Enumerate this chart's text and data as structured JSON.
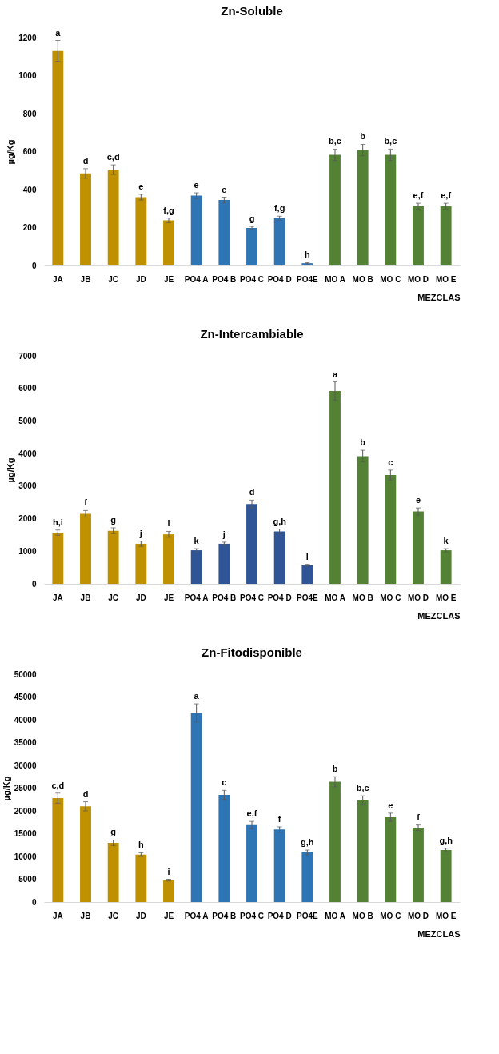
{
  "chart_data": [
    {
      "type": "bar",
      "title": "Zn-Soluble",
      "xlabel": "MEZCLAS",
      "ylabel": "µg/Kg",
      "categories": [
        "JA",
        "JB",
        "JC",
        "JD",
        "JE",
        "PO4 A",
        "PO4 B",
        "PO4 C",
        "PO4 D",
        "PO4E",
        "MO A",
        "MO B",
        "MO C",
        "MO D",
        "MO E"
      ],
      "values": [
        1130,
        485,
        505,
        360,
        238,
        368,
        345,
        198,
        250,
        12,
        583,
        608,
        583,
        313,
        313
      ],
      "errors": [
        55,
        25,
        25,
        15,
        12,
        15,
        15,
        8,
        10,
        3,
        30,
        30,
        30,
        15,
        15
      ],
      "colors": [
        "#bf9000",
        "#bf9000",
        "#bf9000",
        "#bf9000",
        "#bf9000",
        "#2e75b6",
        "#2e75b6",
        "#2e75b6",
        "#2e75b6",
        "#2e75b6",
        "#548235",
        "#548235",
        "#548235",
        "#548235",
        "#548235"
      ],
      "ylim": [
        0,
        1200
      ],
      "yticks": [
        0,
        200,
        400,
        600,
        800,
        1000,
        1200
      ],
      "annotations": [
        {
          "text": "a",
          "x": "JA",
          "y": 1185
        },
        {
          "text": "d",
          "x": "JB",
          "y": 510
        },
        {
          "text": "c,d",
          "x": "JC",
          "y": 530
        },
        {
          "text": "e",
          "x": "JD",
          "y": 375
        },
        {
          "text": "f,g",
          "x": "JE",
          "y": 250
        },
        {
          "text": "e",
          "x": "PO4 A",
          "y": 383
        },
        {
          "text": "e",
          "x": "PO4 B",
          "y": 360
        },
        {
          "text": "g",
          "x": "PO4 C",
          "y": 206
        },
        {
          "text": "f,g",
          "x": "PO4 D",
          "y": 260
        },
        {
          "text": "h",
          "x": "PO4E",
          "y": 15
        },
        {
          "text": "b,c",
          "x": "MO A",
          "y": 613
        },
        {
          "text": "b",
          "x": "MO B",
          "y": 638
        },
        {
          "text": "b,c",
          "x": "MO C",
          "y": 613
        },
        {
          "text": "e,f",
          "x": "MO D",
          "y": 328
        },
        {
          "text": "e,f",
          "x": "MO E",
          "y": 328
        }
      ]
    },
    {
      "type": "bar",
      "title": "Zn-Intercambiable",
      "xlabel": "MEZCLAS",
      "ylabel": "µg/Kg",
      "categories": [
        "JA",
        "JB",
        "JC",
        "JD",
        "JE",
        "PO4 A",
        "PO4 B",
        "PO4 C",
        "PO4 D",
        "PO4E",
        "MO A",
        "MO B",
        "MO C",
        "MO D",
        "MO E"
      ],
      "values": [
        1570,
        2150,
        1630,
        1230,
        1520,
        1030,
        1230,
        2450,
        1610,
        570,
        5920,
        3920,
        3340,
        2220,
        1030
      ],
      "errors": [
        80,
        100,
        90,
        80,
        90,
        50,
        50,
        120,
        70,
        30,
        280,
        180,
        150,
        110,
        50
      ],
      "colors": [
        "#bf9000",
        "#bf9000",
        "#bf9000",
        "#bf9000",
        "#bf9000",
        "#2f5597",
        "#2f5597",
        "#2f5597",
        "#2f5597",
        "#2f5597",
        "#548235",
        "#548235",
        "#548235",
        "#548235",
        "#548235"
      ],
      "ylim": [
        0,
        7000
      ],
      "yticks": [
        0,
        1000,
        2000,
        3000,
        4000,
        5000,
        6000,
        7000
      ],
      "annotations": [
        {
          "text": "h,i",
          "x": "JA",
          "y": 1650
        },
        {
          "text": "f",
          "x": "JB",
          "y": 2250
        },
        {
          "text": "g",
          "x": "JC",
          "y": 1720
        },
        {
          "text": "j",
          "x": "JD",
          "y": 1310
        },
        {
          "text": "i",
          "x": "JE",
          "y": 1610
        },
        {
          "text": "k",
          "x": "PO4 A",
          "y": 1080
        },
        {
          "text": "j",
          "x": "PO4 B",
          "y": 1280
        },
        {
          "text": "d",
          "x": "PO4 C",
          "y": 2570
        },
        {
          "text": "g,h",
          "x": "PO4 D",
          "y": 1680
        },
        {
          "text": "l",
          "x": "PO4E",
          "y": 600
        },
        {
          "text": "a",
          "x": "MO A",
          "y": 6200
        },
        {
          "text": "b",
          "x": "MO B",
          "y": 4100
        },
        {
          "text": "c",
          "x": "MO C",
          "y": 3490
        },
        {
          "text": "e",
          "x": "MO D",
          "y": 2330
        },
        {
          "text": "k",
          "x": "MO E",
          "y": 1080
        }
      ]
    },
    {
      "type": "bar",
      "title": "Zn-Fitodisponible",
      "xlabel": "MEZCLAS",
      "ylabel": "µg/Kg",
      "categories": [
        "JA",
        "JB",
        "JC",
        "JD",
        "JE",
        "PO4 A",
        "PO4 B",
        "PO4 C",
        "PO4 D",
        "PO4E",
        "MO A",
        "MO B",
        "MO C",
        "MO D",
        "MO E"
      ],
      "values": [
        22800,
        21000,
        13000,
        10400,
        4800,
        41500,
        23500,
        16900,
        15900,
        10900,
        26400,
        22300,
        18600,
        16300,
        11400
      ],
      "errors": [
        1100,
        1000,
        600,
        400,
        200,
        2000,
        1000,
        800,
        600,
        500,
        1100,
        1000,
        900,
        600,
        400
      ],
      "colors": [
        "#bf9000",
        "#bf9000",
        "#bf9000",
        "#bf9000",
        "#bf9000",
        "#2e75b6",
        "#2e75b6",
        "#2e75b6",
        "#2e75b6",
        "#2e75b6",
        "#548235",
        "#548235",
        "#548235",
        "#548235",
        "#548235"
      ],
      "ylim": [
        0,
        50000
      ],
      "yticks": [
        0,
        5000,
        10000,
        15000,
        20000,
        25000,
        30000,
        35000,
        40000,
        45000,
        50000
      ],
      "annotations": [
        {
          "text": "c,d",
          "x": "JA",
          "y": 23900
        },
        {
          "text": "d",
          "x": "JB",
          "y": 22000
        },
        {
          "text": "g",
          "x": "JC",
          "y": 13600
        },
        {
          "text": "h",
          "x": "JD",
          "y": 10800
        },
        {
          "text": "i",
          "x": "JE",
          "y": 5000
        },
        {
          "text": "a",
          "x": "PO4 A",
          "y": 43500
        },
        {
          "text": "c",
          "x": "PO4 B",
          "y": 24500
        },
        {
          "text": "e,f",
          "x": "PO4 C",
          "y": 17700
        },
        {
          "text": "f",
          "x": "PO4 D",
          "y": 16500
        },
        {
          "text": "g,h",
          "x": "PO4E",
          "y": 11400
        },
        {
          "text": "b",
          "x": "MO A",
          "y": 27500
        },
        {
          "text": "b,c",
          "x": "MO B",
          "y": 23300
        },
        {
          "text": "e",
          "x": "MO C",
          "y": 19500
        },
        {
          "text": "f",
          "x": "MO D",
          "y": 16900
        },
        {
          "text": "g,h",
          "x": "MO E",
          "y": 11800
        }
      ]
    }
  ]
}
